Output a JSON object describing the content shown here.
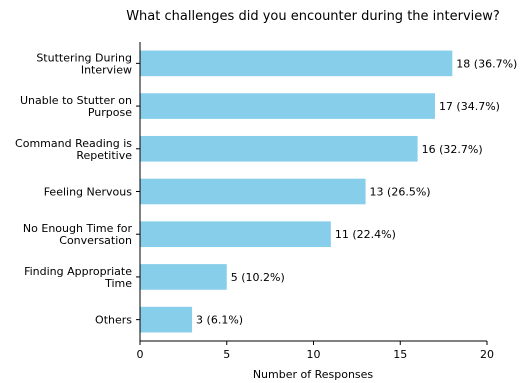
{
  "chart_data": {
    "type": "bar",
    "orientation": "horizontal",
    "title": "What challenges did you encounter during the interview?",
    "xlabel": "Number of Responses",
    "ylabel": "",
    "xlim": [
      0,
      20
    ],
    "xticks": [
      0,
      5,
      10,
      15,
      20
    ],
    "grid": false,
    "bar_color": "#87ceeb",
    "categories": [
      [
        "Stuttering During",
        "Interview"
      ],
      [
        "Unable to Stutter on",
        "Purpose"
      ],
      [
        "Command Reading is",
        "Repetitive"
      ],
      [
        "Feeling Nervous"
      ],
      [
        "No Enough Time for",
        "Conversation"
      ],
      [
        "Finding Appropriate",
        "Time"
      ],
      [
        "Others"
      ]
    ],
    "values": [
      18,
      17,
      16,
      13,
      11,
      5,
      3
    ],
    "labels": [
      "18 (36.7%)",
      "17 (34.7%)",
      "16 (32.7%)",
      "13 (26.5%)",
      "11 (22.4%)",
      "5 (10.2%)",
      "3 (6.1%)"
    ]
  }
}
